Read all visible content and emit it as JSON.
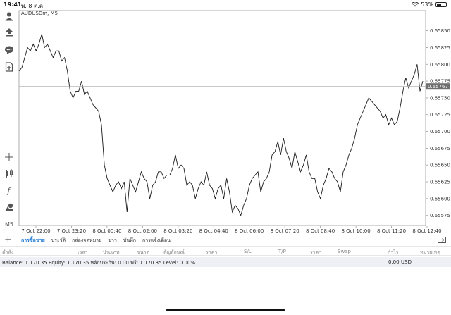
{
  "status": {
    "time": "19:41",
    "date": "พ. 8 ต.ค.",
    "battery": "53%",
    "battery_level": 0.53
  },
  "left_toolbar": {
    "top": [
      "user-icon",
      "share-icon",
      "chat-icon",
      "add-chart-icon"
    ],
    "bottom": [
      "crosshair-icon",
      "indicators-icon",
      "function-icon",
      "objects-icon"
    ],
    "timeframe": "M5"
  },
  "chart": {
    "symbol": "AUDUSDm, M5",
    "current_price": "0.65767"
  },
  "chart_data": {
    "type": "line",
    "title": "AUDUSDm, M5",
    "ylim": [
      0.6556,
      0.6588
    ],
    "y_ticks": [
      "0.65850",
      "0.65825",
      "0.65800",
      "0.65775",
      "0.65750",
      "0.65725",
      "0.65700",
      "0.65675",
      "0.65650",
      "0.65625",
      "0.65600",
      "0.65575"
    ],
    "x_ticks": [
      "7 Oct 22:00",
      "7 Oct 23:20",
      "8 Oct 00:40",
      "8 Oct 02:00",
      "8 Oct 03:20",
      "8 Oct 04:40",
      "8 Oct 06:00",
      "8 Oct 07:20",
      "8 Oct 08:40",
      "8 Oct 10:00",
      "8 Oct 11:20",
      "8 Oct 12:40"
    ],
    "current_level": 0.65767,
    "series": [
      {
        "values": [
          0.6579,
          0.65795,
          0.6581,
          0.65825,
          0.6582,
          0.6583,
          0.6582,
          0.6583,
          0.65845,
          0.65825,
          0.6583,
          0.6582,
          0.6581,
          0.6582,
          0.6582,
          0.65805,
          0.6581,
          0.6579,
          0.6576,
          0.6575,
          0.6576,
          0.6576,
          0.65775,
          0.65755,
          0.6576,
          0.6575,
          0.6574,
          0.65735,
          0.6573,
          0.6571,
          0.6565,
          0.6563,
          0.6562,
          0.6561,
          0.6562,
          0.65625,
          0.65615,
          0.65625,
          0.6558,
          0.6563,
          0.6562,
          0.6561,
          0.65625,
          0.6564,
          0.6563,
          0.65625,
          0.656,
          0.6562,
          0.65625,
          0.6564,
          0.6564,
          0.6563,
          0.65635,
          0.65635,
          0.65645,
          0.65665,
          0.65645,
          0.6565,
          0.65645,
          0.6562,
          0.65625,
          0.6562,
          0.656,
          0.65615,
          0.65625,
          0.6562,
          0.6564,
          0.6562,
          0.65615,
          0.656,
          0.65615,
          0.6562,
          0.656,
          0.6563,
          0.6561,
          0.6558,
          0.6559,
          0.65585,
          0.65575,
          0.6559,
          0.656,
          0.6562,
          0.6563,
          0.65635,
          0.6564,
          0.6561,
          0.65625,
          0.6563,
          0.6564,
          0.65665,
          0.6567,
          0.65685,
          0.65665,
          0.6569,
          0.6567,
          0.6566,
          0.65645,
          0.6567,
          0.65655,
          0.6564,
          0.6565,
          0.65665,
          0.6564,
          0.6563,
          0.6563,
          0.6561,
          0.656,
          0.6562,
          0.6563,
          0.65645,
          0.6564,
          0.6563,
          0.65625,
          0.6561,
          0.6564,
          0.6565,
          0.65665,
          0.65675,
          0.6569,
          0.6571,
          0.6572,
          0.6573,
          0.6574,
          0.6575,
          0.65745,
          0.6574,
          0.65735,
          0.6573,
          0.6572,
          0.65725,
          0.6571,
          0.6572,
          0.6571,
          0.65715,
          0.65735,
          0.6576,
          0.6578,
          0.65765,
          0.65775,
          0.65785,
          0.658,
          0.6576,
          0.65775
        ]
      }
    ]
  },
  "tabs": [
    "การซื้อขาย",
    "ประวัติ",
    "กล่องจดหมาย",
    "ข่าว",
    "บันทึก",
    "การแจ้งเตือน"
  ],
  "active_tab": 0,
  "table_headers": [
    "คำสั่ง",
    "เวลา",
    "ประเภท",
    "ขนาด",
    "สัญลักษณ์",
    "ราคา",
    "S/L",
    "T/P",
    "ราคา",
    "Swap",
    "กำไร",
    "หมายเหตุ"
  ],
  "balance_text": "Balance: 1 170.35 Equity: 1 170.35 หลักประกัน: 0.00 ฟรี: 1 170.35 Level: 0.00%",
  "profit": "0.00",
  "currency": "USD"
}
